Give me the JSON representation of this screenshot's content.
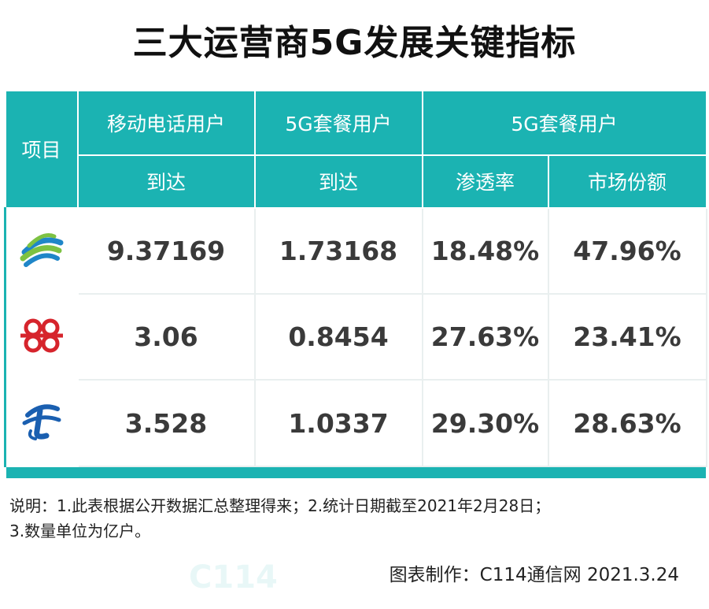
{
  "title": "三大运营商5G发展关键指标",
  "table": {
    "col_item": "项目",
    "groups": [
      "移动电话用户",
      "5G套餐用户",
      "5G套餐用户"
    ],
    "sub": [
      "到达",
      "到达",
      "渗透率",
      "市场份额"
    ],
    "rows": [
      {
        "logo": "china-mobile-logo",
        "values": [
          "9.37169",
          "1.73168",
          "18.48%",
          "47.96%"
        ]
      },
      {
        "logo": "china-unicom-logo",
        "values": [
          "3.06",
          "0.8454",
          "27.63%",
          "23.41%"
        ]
      },
      {
        "logo": "china-telecom-logo",
        "values": [
          "3.528",
          "1.0337",
          "29.30%",
          "28.63%"
        ]
      }
    ]
  },
  "notes": {
    "line1": "说明：1.此表根据公开数据汇总整理得来；2.统计日期截至2021年2月28日；",
    "line2": "3.数量单位为亿户。"
  },
  "credit": "图表制作：C114通信网  2021.3.24",
  "colors": {
    "accent": "#1bb3b2",
    "mobile_blue": "#1f86c8",
    "mobile_green": "#7dc242",
    "unicom_red": "#d6242c",
    "telecom_blue": "#1a5fb0"
  }
}
